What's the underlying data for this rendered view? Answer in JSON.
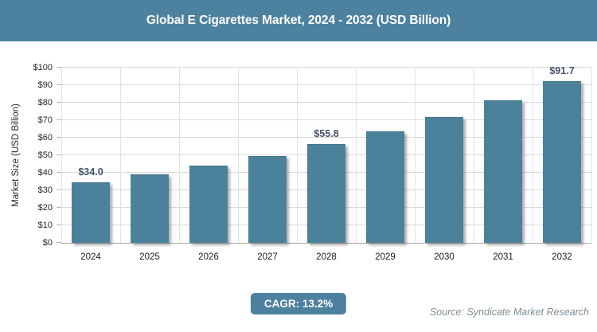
{
  "header": {
    "title": "Global E Cigarettes Market, 2024 - 2032 (USD Billion)"
  },
  "chart_data": {
    "type": "bar",
    "title": "Global E Cigarettes Market, 2024 - 2032 (USD Billion)",
    "categories": [
      "2024",
      "2025",
      "2026",
      "2027",
      "2028",
      "2029",
      "2030",
      "2031",
      "2032"
    ],
    "values": [
      34.0,
      38.5,
      43.6,
      49.3,
      55.8,
      63.2,
      71.5,
      80.9,
      91.7
    ],
    "data_labels": [
      "$34.0",
      "",
      "",
      "",
      "$55.8",
      "",
      "",
      "",
      "$91.7"
    ],
    "xlabel": "",
    "ylabel": "Market Size (USD Billion)",
    "ylim": [
      0,
      100
    ],
    "ytick_step": 10,
    "ytick_labels": [
      "$0",
      "$10",
      "$20",
      "$30",
      "$40",
      "$50",
      "$60",
      "$70",
      "$80",
      "$90",
      "$100"
    ],
    "grid": true,
    "legend": "none",
    "bar_color": "#4c819b"
  },
  "footer": {
    "cagr_label": "CAGR: 13.2%",
    "source": "Source: Syndicate Market Research"
  },
  "colors": {
    "accent_teal": "#4d81a0",
    "bar_fill": "#4c819b",
    "data_label": "#44546a",
    "gridline_horizontal": "#d9d9d9",
    "gridline_vertical": "#dee3e6",
    "axis_line": "#a6a6a6",
    "tick_label": "#262626",
    "source_text": "#7d8e99",
    "background": "#ffffff"
  }
}
